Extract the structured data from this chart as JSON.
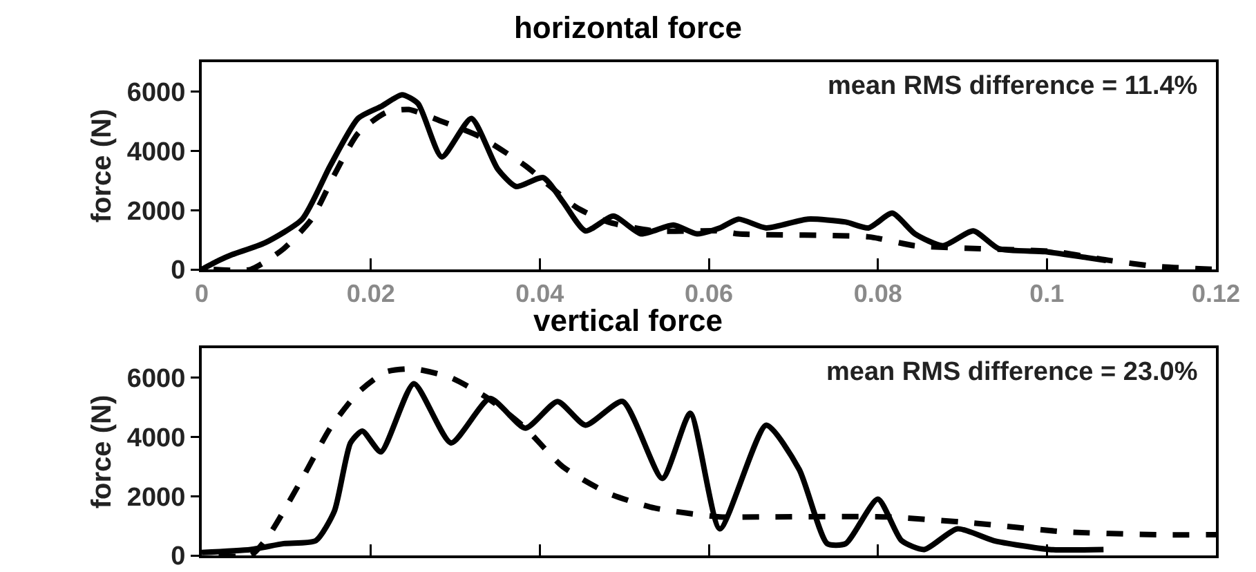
{
  "chart_data": [
    {
      "type": "line",
      "title": "horizontal force",
      "ylabel": "force (N)",
      "annotations": [
        "mean RMS difference = 11.4%"
      ],
      "xlim": [
        0,
        0.12
      ],
      "xticks": [
        0,
        0.02,
        0.04,
        0.06,
        0.08,
        0.1,
        0.12
      ],
      "ylim": [
        0,
        7000
      ],
      "yticks": [
        0,
        2000,
        4000,
        6000
      ],
      "grid": false,
      "series": [
        {
          "color": "#000000",
          "line_style": "solid",
          "x": [
            0.0,
            0.002,
            0.0036,
            0.0075,
            0.0119,
            0.0152,
            0.0185,
            0.0212,
            0.0237,
            0.0256,
            0.0284,
            0.0319,
            0.035,
            0.0372,
            0.0404,
            0.0427,
            0.0454,
            0.0487,
            0.052,
            0.0558,
            0.0586,
            0.0613,
            0.0635,
            0.0668,
            0.0717,
            0.0762,
            0.0789,
            0.0817,
            0.0844,
            0.0877,
            0.0913,
            0.0943,
            0.0998,
            0.1047,
            0.107
          ],
          "values": [
            0,
            300,
            500,
            900,
            1700,
            3500,
            5100,
            5500,
            5900,
            5600,
            3800,
            5100,
            3400,
            2800,
            3100,
            2300,
            1300,
            1800,
            1200,
            1500,
            1200,
            1400,
            1700,
            1400,
            1700,
            1600,
            1400,
            1900,
            1200,
            800,
            1300,
            700,
            600,
            400,
            300
          ]
        },
        {
          "color": "#000000",
          "line_style": "dashed",
          "x": [
            0.0014,
            0.0058,
            0.0097,
            0.013,
            0.0157,
            0.0185,
            0.0218,
            0.0245,
            0.0284,
            0.0328,
            0.0383,
            0.0443,
            0.0481,
            0.0536,
            0.0613,
            0.0635,
            0.0789,
            0.0844,
            0.0921,
            0.1009,
            0.1075,
            0.113,
            0.12
          ],
          "values": [
            0,
            0,
            700,
            1700,
            3200,
            4600,
            5300,
            5400,
            5000,
            4500,
            3500,
            2100,
            1600,
            1300,
            1300,
            1200,
            1100,
            800,
            700,
            600,
            300,
            100,
            0
          ]
        }
      ]
    },
    {
      "type": "line",
      "title": "vertical force",
      "ylabel": "force (N)",
      "annotations": [
        "mean RMS difference = 23.0%"
      ],
      "xlim": [
        0,
        0.12
      ],
      "xticks": [
        0,
        0.02,
        0.04,
        0.06,
        0.08,
        0.1,
        0.12
      ],
      "ylim": [
        0,
        7000
      ],
      "yticks": [
        0,
        2000,
        4000,
        6000
      ],
      "grid": false,
      "tick_labels": "y",
      "series": [
        {
          "color": "#000000",
          "line_style": "solid",
          "x": [
            0.0,
            0.0058,
            0.0097,
            0.0135,
            0.0157,
            0.0176,
            0.019,
            0.0212,
            0.0251,
            0.0295,
            0.0341,
            0.0383,
            0.0421,
            0.0454,
            0.0498,
            0.0545,
            0.0578,
            0.0613,
            0.0668,
            0.0707,
            0.074,
            0.0762,
            0.08,
            0.0828,
            0.0855,
            0.0894,
            0.0937,
            0.1003,
            0.1067
          ],
          "values": [
            100,
            200,
            400,
            500,
            1500,
            3800,
            4200,
            3500,
            5800,
            3800,
            5300,
            4300,
            5200,
            4400,
            5200,
            2600,
            4800,
            900,
            4400,
            2900,
            400,
            400,
            1900,
            500,
            200,
            900,
            500,
            200,
            200
          ]
        },
        {
          "color": "#000000",
          "line_style": "dashed",
          "x": [
            0.002,
            0.0058,
            0.008,
            0.0119,
            0.0152,
            0.0185,
            0.0218,
            0.0251,
            0.0295,
            0.0339,
            0.0383,
            0.0427,
            0.0481,
            0.0536,
            0.0613,
            0.0663,
            0.0811,
            0.091,
            0.102,
            0.113,
            0.12
          ],
          "values": [
            0,
            0,
            700,
            2600,
            4300,
            5500,
            6200,
            6300,
            6000,
            5300,
            4300,
            3000,
            2100,
            1600,
            1300,
            1300,
            1300,
            1100,
            800,
            700,
            700
          ]
        }
      ]
    }
  ]
}
